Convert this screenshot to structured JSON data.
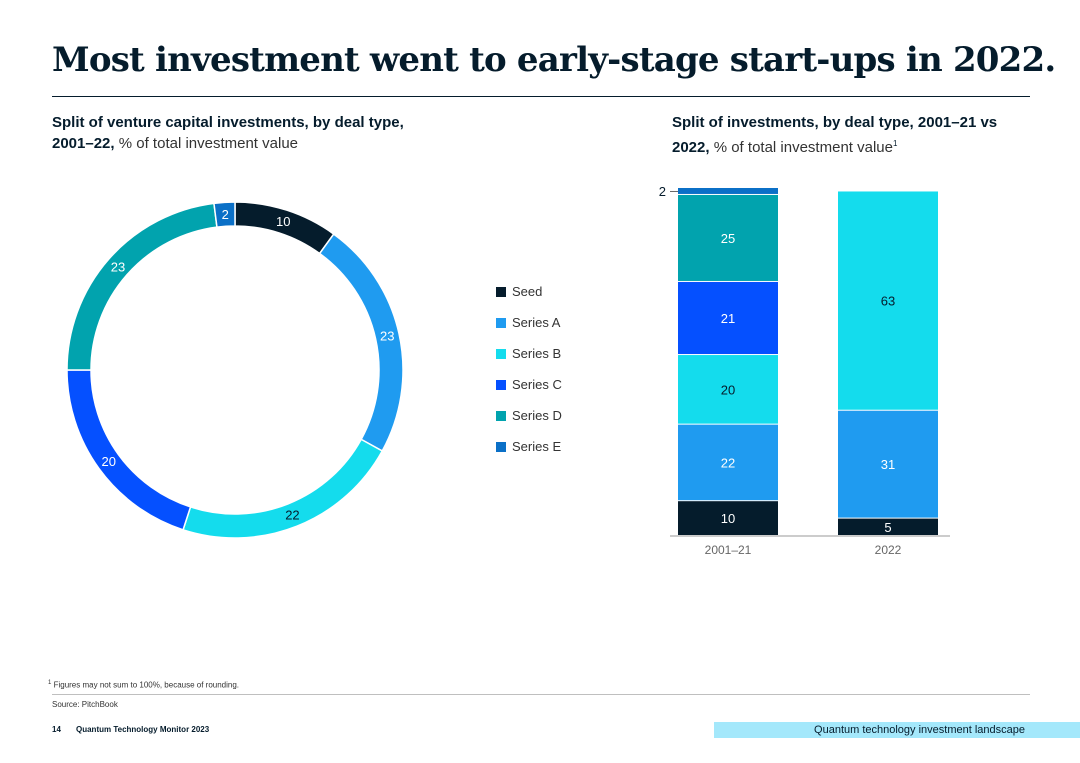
{
  "title": "Most investment went to early-stage start-ups in 2022.",
  "left_subtitle": {
    "bold": "Split of venture capital investments, by deal type, 2001–22,",
    "light": " % of total investment value"
  },
  "right_subtitle": {
    "bold": "Split of investments, by deal type, 2001–21 vs 2022,",
    "light": " % of total investment value",
    "note_marker": "1"
  },
  "colors": {
    "seed": "#051c2c",
    "series_a": "#1f9bf0",
    "series_b": "#14dced",
    "series_c": "#0550ff",
    "series_d": "#01a3ae",
    "series_e": "#0b70c7"
  },
  "legend": [
    {
      "label": "Seed",
      "color": "#051c2c"
    },
    {
      "label": "Series A",
      "color": "#1f9bf0"
    },
    {
      "label": "Series B",
      "color": "#14dced"
    },
    {
      "label": "Series C",
      "color": "#0550ff"
    },
    {
      "label": "Series D",
      "color": "#01a3ae"
    },
    {
      "label": "Series E",
      "color": "#0b70c7"
    }
  ],
  "chart_data": [
    {
      "type": "pie",
      "title": "Split of venture capital investments, by deal type, 2001–22, % of total investment value",
      "donut": true,
      "slices": [
        {
          "label": "Seed",
          "value": 10,
          "color": "#051c2c"
        },
        {
          "label": "Series A",
          "value": 23,
          "color": "#1f9bf0"
        },
        {
          "label": "Series B",
          "value": 22,
          "color": "#14dced"
        },
        {
          "label": "Series C",
          "value": 20,
          "color": "#0550ff"
        },
        {
          "label": "Series D",
          "value": 23,
          "color": "#01a3ae"
        },
        {
          "label": "Series E",
          "value": 2,
          "color": "#0b70c7"
        }
      ]
    },
    {
      "type": "bar",
      "stacked": true,
      "title": "Split of investments, by deal type, 2001–21 vs 2022, % of total investment value",
      "categories": [
        "2001–21",
        "2022"
      ],
      "series": [
        {
          "name": "Seed",
          "color": "#051c2c",
          "values": [
            10,
            5
          ]
        },
        {
          "name": "Series A",
          "color": "#1f9bf0",
          "values": [
            22,
            31
          ]
        },
        {
          "name": "Series B",
          "color": "#14dced",
          "values": [
            20,
            63
          ]
        },
        {
          "name": "Series C",
          "color": "#0550ff",
          "values": [
            21,
            0
          ]
        },
        {
          "name": "Series D",
          "color": "#01a3ae",
          "values": [
            25,
            0
          ]
        },
        {
          "name": "Series E",
          "color": "#0b70c7",
          "values": [
            2,
            0
          ]
        }
      ],
      "ylim": [
        0,
        100
      ]
    }
  ],
  "footnote": {
    "marker": "1",
    "text": "Figures may not sum to 100%, because of rounding."
  },
  "source": "Source: PitchBook",
  "footer": {
    "page_number": "14",
    "report_name": "Quantum Technology Monitor 2023",
    "section": "Quantum technology investment landscape"
  }
}
